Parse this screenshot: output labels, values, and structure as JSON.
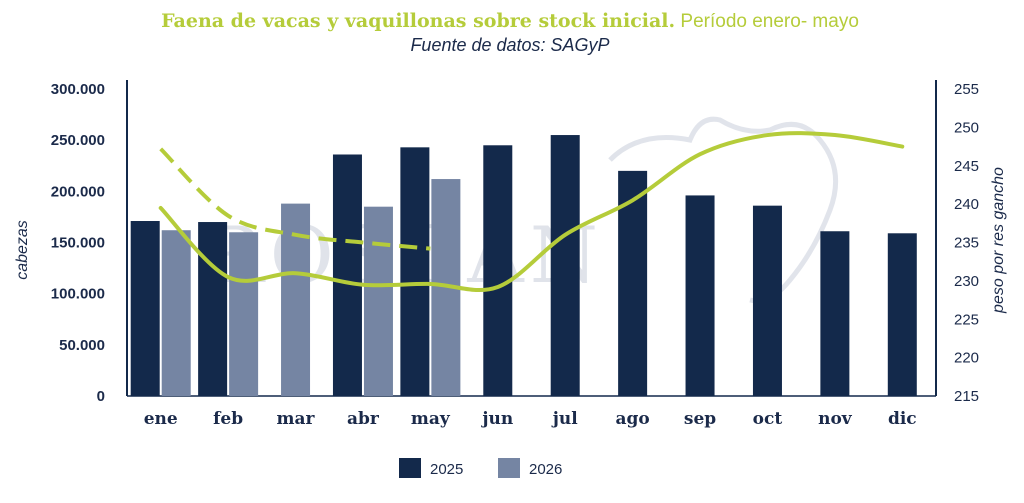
{
  "title_bold": "Faena de vacas y vaquillonas sobre stock inicial.",
  "title_regular": " Período enero- mayo",
  "subtitle": "Fuente de datos: SAGyP",
  "watermark": "ROSGAN",
  "colors": {
    "series_2025": "#13294b",
    "series_2026": "#7585a3",
    "line_solid": "#b5cc3a",
    "line_dashed": "#b5cc3a",
    "title_accent": "#b5cc3a",
    "text": "#1b2a4a"
  },
  "chart_data": {
    "type": "bar",
    "title": "Faena de vacas y vaquillonas sobre stock inicial. Período enero- mayo",
    "subtitle": "Fuente de datos: SAGyP",
    "categories": [
      "ene",
      "feb",
      "mar",
      "abr",
      "may",
      "jun",
      "jul",
      "ago",
      "sep",
      "oct",
      "nov",
      "dic"
    ],
    "ylabel": "cabezas",
    "y2label": "peso por res gancho",
    "ylim": [
      0,
      300000
    ],
    "yticks": [
      0,
      50000,
      100000,
      150000,
      200000,
      250000,
      300000
    ],
    "ytick_labels": [
      "0",
      "50.000",
      "100.000",
      "150.000",
      "200.000",
      "250.000",
      "300.000"
    ],
    "y2lim": [
      215,
      255
    ],
    "y2ticks": [
      215,
      220,
      225,
      230,
      235,
      240,
      245,
      250,
      255
    ],
    "y2tick_labels": [
      "215",
      "220",
      "225",
      "230",
      "235",
      "240",
      "245",
      "250",
      "255"
    ],
    "series": [
      {
        "name": "2025",
        "kind": "bar",
        "axis": "left",
        "values": [
          171000,
          170000,
          null,
          236000,
          243000,
          245000,
          255000,
          220000,
          196000,
          186000,
          161000,
          159000
        ]
      },
      {
        "name": "2026",
        "kind": "bar",
        "axis": "left",
        "values": [
          162000,
          160000,
          188000,
          185000,
          212000,
          null,
          null,
          null,
          null,
          null,
          null,
          null
        ]
      },
      {
        "kind": "line",
        "style": "solid",
        "axis": "right",
        "values": [
          239.5,
          230.5,
          231.0,
          229.5,
          229.6,
          229.2,
          236.0,
          240.5,
          246.5,
          249.0,
          249.0,
          247.5
        ]
      },
      {
        "kind": "line",
        "style": "dashed",
        "axis": "right",
        "values": [
          247.2,
          238.5,
          236.0,
          235.0,
          234.2,
          null,
          null,
          null,
          null,
          null,
          null,
          null
        ]
      }
    ],
    "legend": {
      "placement": "bottom-center",
      "entries": [
        "2025",
        "2026"
      ]
    },
    "grid": false
  }
}
